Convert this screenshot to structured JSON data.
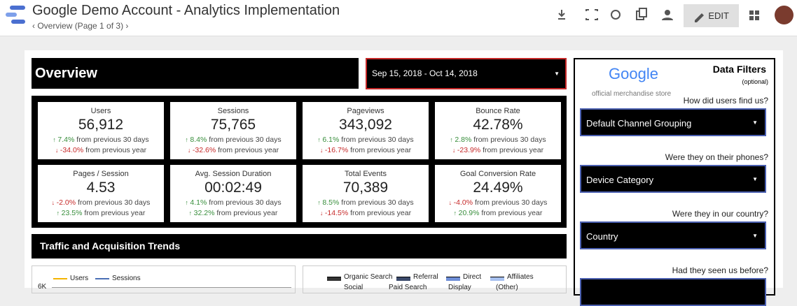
{
  "header": {
    "title": "Google Demo Account - Analytics Implementation",
    "breadcrumb": "Overview (Page 1 of 3)",
    "edit_button": "EDIT"
  },
  "report": {
    "heading": "Overview",
    "date_range": "Sep 15, 2018 - Oct 14, 2018",
    "metrics": [
      {
        "label": "Users",
        "value": "56,912",
        "changes": [
          {
            "direction": "up",
            "amount": "7.4%",
            "text": "from previous 30 days"
          },
          {
            "direction": "down",
            "amount": "-34.0%",
            "text": "from previous year"
          }
        ]
      },
      {
        "label": "Sessions",
        "value": "75,765",
        "changes": [
          {
            "direction": "up",
            "amount": "8.4%",
            "text": "from previous 30 days"
          },
          {
            "direction": "down",
            "amount": "-32.6%",
            "text": "from previous year"
          }
        ]
      },
      {
        "label": "Pageviews",
        "value": "343,092",
        "changes": [
          {
            "direction": "up",
            "amount": "6.1%",
            "text": "from previous 30 days"
          },
          {
            "direction": "down",
            "amount": "-16.7%",
            "text": "from previous year"
          }
        ]
      },
      {
        "label": "Bounce Rate",
        "value": "42.78%",
        "changes": [
          {
            "direction": "up",
            "amount": "2.8%",
            "text": "from previous 30 days"
          },
          {
            "direction": "down",
            "amount": "-23.9%",
            "text": "from previous year"
          }
        ]
      },
      {
        "label": "Pages / Session",
        "value": "4.53",
        "changes": [
          {
            "direction": "down",
            "amount": "-2.0%",
            "text": "from previous 30 days"
          },
          {
            "direction": "up",
            "amount": "23.5%",
            "text": "from previous year"
          }
        ]
      },
      {
        "label": "Avg. Session Duration",
        "value": "00:02:49",
        "changes": [
          {
            "direction": "up",
            "amount": "4.1%",
            "text": "from previous 30 days"
          },
          {
            "direction": "up",
            "amount": "32.2%",
            "text": "from previous year"
          }
        ]
      },
      {
        "label": "Total Events",
        "value": "70,389",
        "changes": [
          {
            "direction": "up",
            "amount": "8.5%",
            "text": "from previous 30 days"
          },
          {
            "direction": "down",
            "amount": "-14.5%",
            "text": "from previous year"
          }
        ]
      },
      {
        "label": "Goal Conversion Rate",
        "value": "24.49%",
        "changes": [
          {
            "direction": "down",
            "amount": "-4.0%",
            "text": "from previous 30 days"
          },
          {
            "direction": "up",
            "amount": "20.9%",
            "text": "from previous year"
          }
        ]
      }
    ],
    "section_title": "Traffic and Acquisition Trends",
    "trend_chart": {
      "series": [
        {
          "name": "Users",
          "color": "#f4b400"
        },
        {
          "name": "Sessions",
          "color": "#4a6fb5"
        }
      ],
      "top_tick": "6K"
    },
    "channel_chart": {
      "series": [
        {
          "name": "Organic Search",
          "color": "#333333"
        },
        {
          "name": "Referral",
          "color": "#3b4a6b"
        },
        {
          "name": "Direct",
          "color": "#6f8fd8"
        },
        {
          "name": "Affiliates",
          "color": "#a8c1f0"
        },
        {
          "name": "Social",
          "color": "#777777"
        },
        {
          "name": "Paid Search",
          "color": "#555555"
        },
        {
          "name": "Display",
          "color": "#999999"
        },
        {
          "name": "(Other)",
          "color": "#bbbbbb"
        }
      ]
    }
  },
  "filters": {
    "logo": "Google",
    "store": "official merchandise store",
    "title": "Data Filters",
    "subtitle": "(optional)",
    "items": [
      {
        "question": "How did users find us?",
        "control": "Default Channel Grouping"
      },
      {
        "question": "Were they on their phones?",
        "control": "Device Category"
      },
      {
        "question": "Were they in our country?",
        "control": "Country"
      },
      {
        "question": "Had they seen us before?",
        "control": ""
      }
    ]
  }
}
